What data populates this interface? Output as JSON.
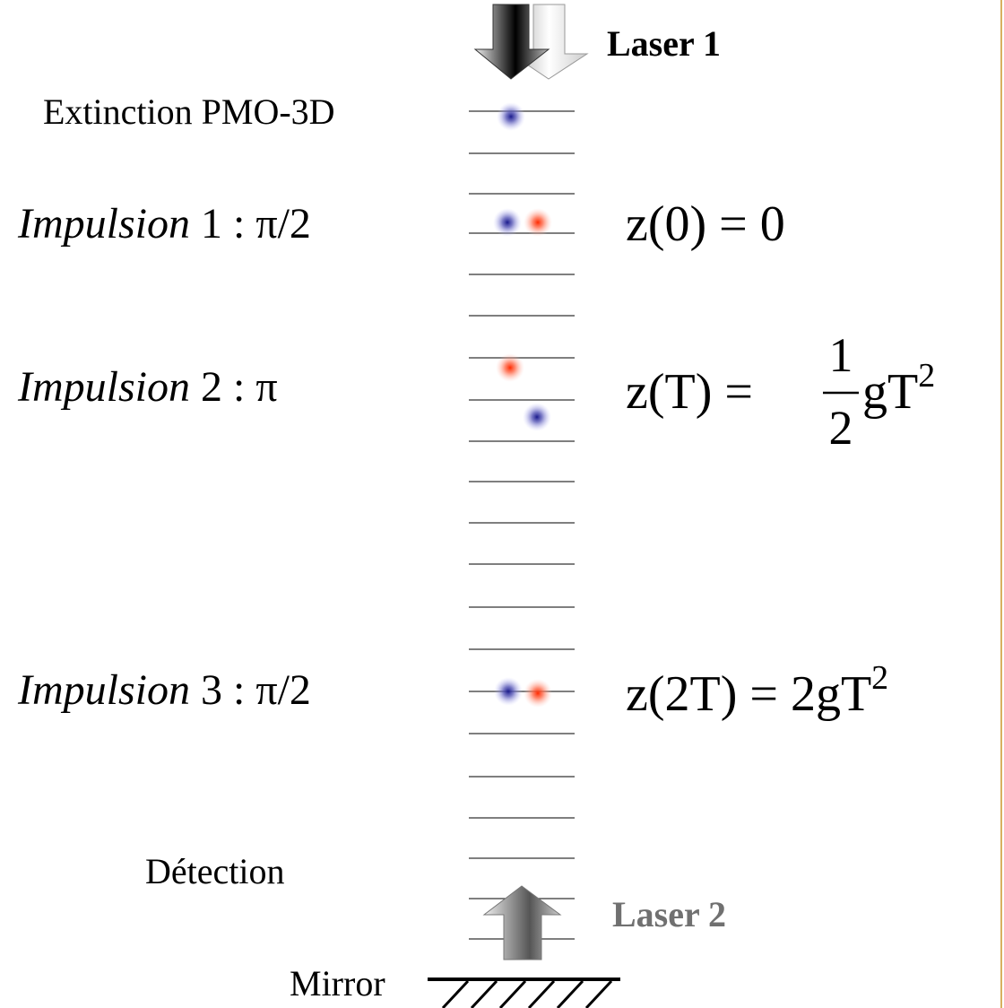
{
  "labels": {
    "laser1": "Laser 1",
    "extinction": "Extinction PMO-3D",
    "detection": "Détection",
    "laser2": "Laser 2",
    "mirror": "Mirror"
  },
  "pulses": [
    {
      "word": "Impulsion",
      "spec": "1 : π/2",
      "equation": {
        "lhs": "z(0) = 0"
      }
    },
    {
      "word": "Impulsion",
      "spec": "2 : π",
      "equation": {
        "lhs": "z(T) =",
        "numerator": "1",
        "denominator": "2",
        "rhs": "gT",
        "exponent": "2"
      }
    },
    {
      "word": "Impulsion",
      "spec": "3 : π/2",
      "equation": {
        "lhs": "z(2T) = 2gT",
        "exponent": "2"
      }
    }
  ]
}
